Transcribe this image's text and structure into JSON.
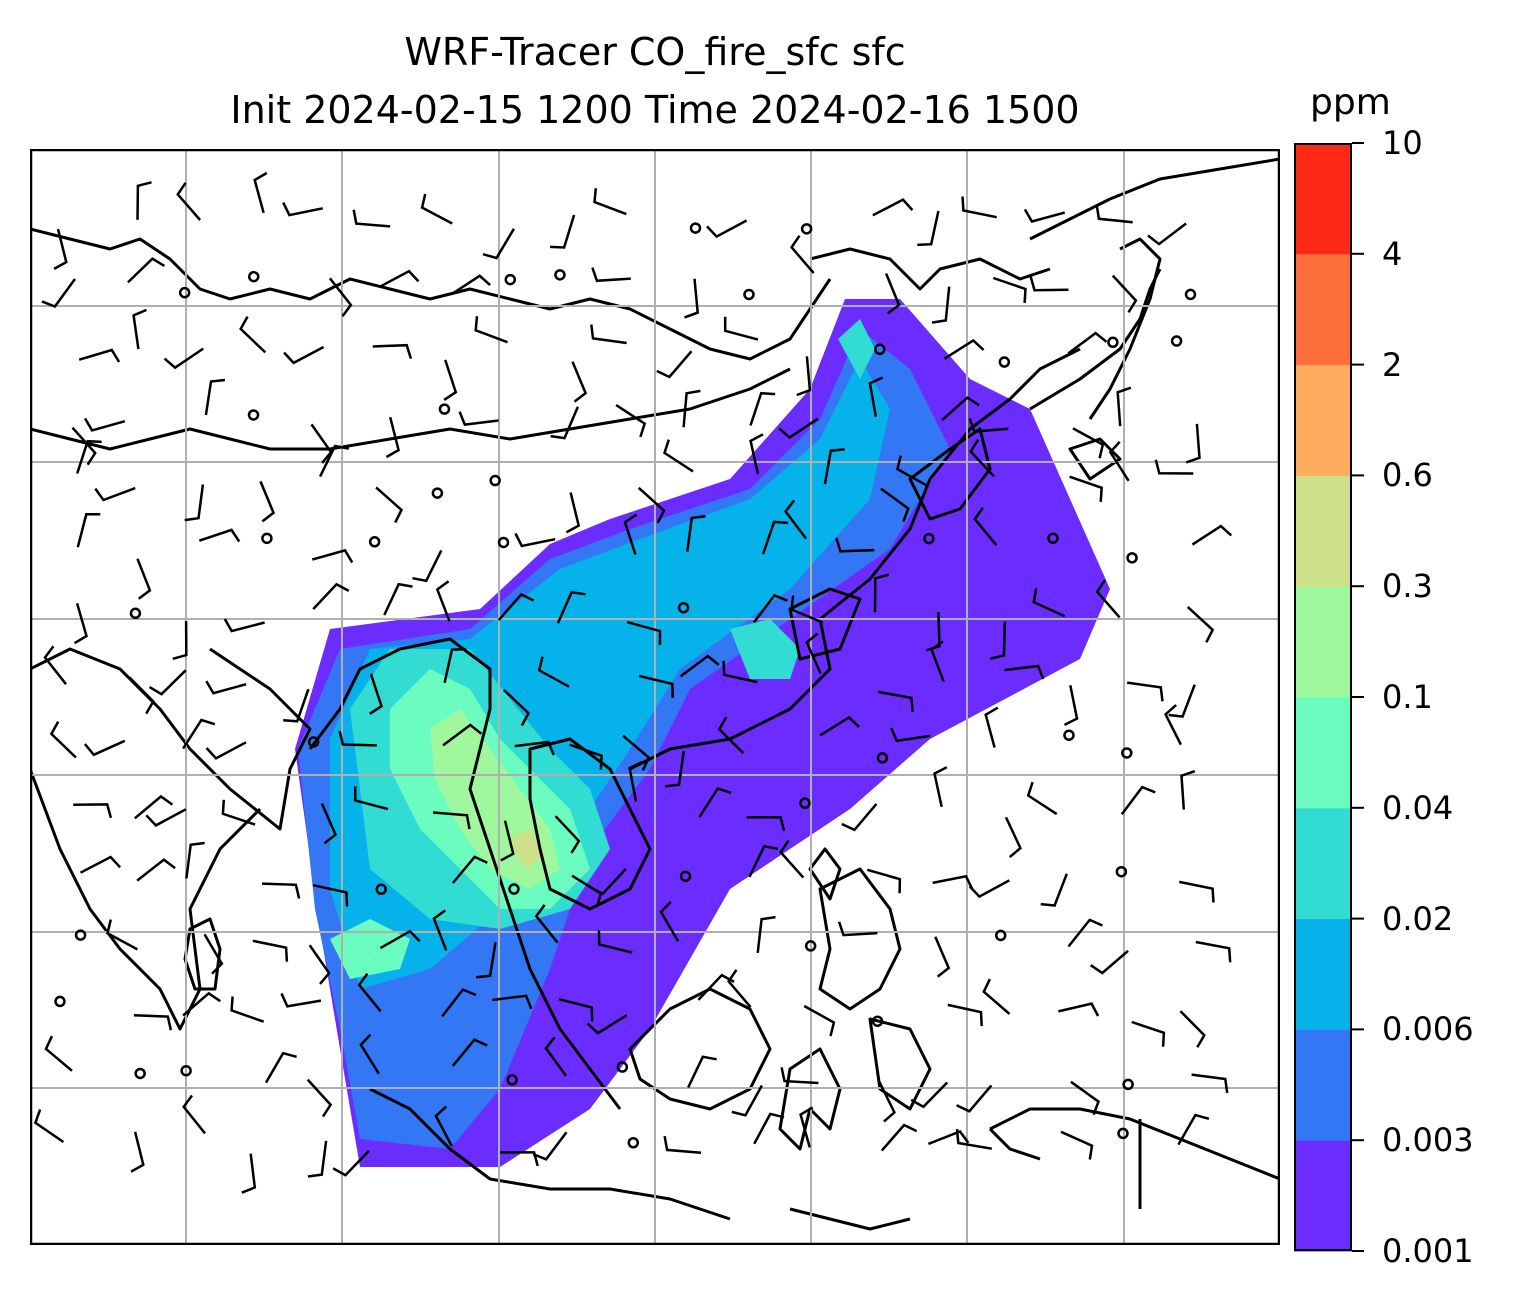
{
  "title": {
    "line1": "WRF-Tracer CO_fire_sfc sfc",
    "line2": "Init 2024-02-15 1200 Time 2024-02-16 1500"
  },
  "colorbar": {
    "unit": "ppm",
    "levels": [
      "0.001",
      "0.003",
      "0.006",
      "0.02",
      "0.04",
      "0.1",
      "0.3",
      "0.6",
      "2",
      "4",
      "10"
    ],
    "colors": [
      "#6a2cff",
      "#3377f5",
      "#06b2ea",
      "#33dcd2",
      "#6bfcbf",
      "#9ff89d",
      "#cfe08a",
      "#ffac5e",
      "#ff6f3d",
      "#ff2a16"
    ]
  },
  "map": {
    "gridlines": "on",
    "grid_color": "#b0b0b0",
    "coastline_color": "#000000",
    "wind_barbs": "on"
  }
}
